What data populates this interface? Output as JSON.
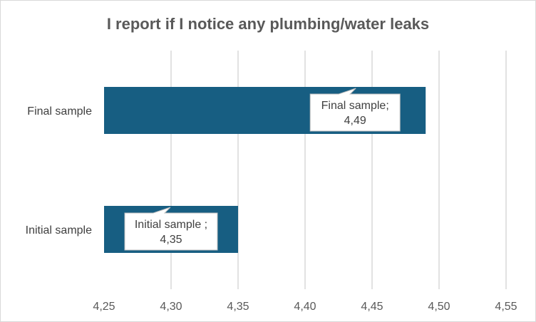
{
  "chart_data": {
    "type": "bar",
    "orientation": "horizontal",
    "title": "I report if I notice any plumbing/water leaks",
    "xlabel": "",
    "ylabel": "",
    "categories": [
      "Final sample",
      "Initial sample"
    ],
    "values": [
      4.49,
      4.35
    ],
    "data_labels": [
      {
        "series": "Final sample;",
        "value": "4,49"
      },
      {
        "series": "Initial sample ;",
        "value": "4,35"
      }
    ],
    "xlim": [
      4.25,
      4.55
    ],
    "x_ticks": [
      4.25,
      4.3,
      4.35,
      4.4,
      4.45,
      4.5,
      4.55
    ],
    "x_tick_labels": [
      "4,25",
      "4,30",
      "4,35",
      "4,40",
      "4,45",
      "4,50",
      "4,55"
    ],
    "grid": "vertical",
    "legend": "none",
    "bar_color": "#175e82",
    "grid_color": "#d9d9d9"
  }
}
